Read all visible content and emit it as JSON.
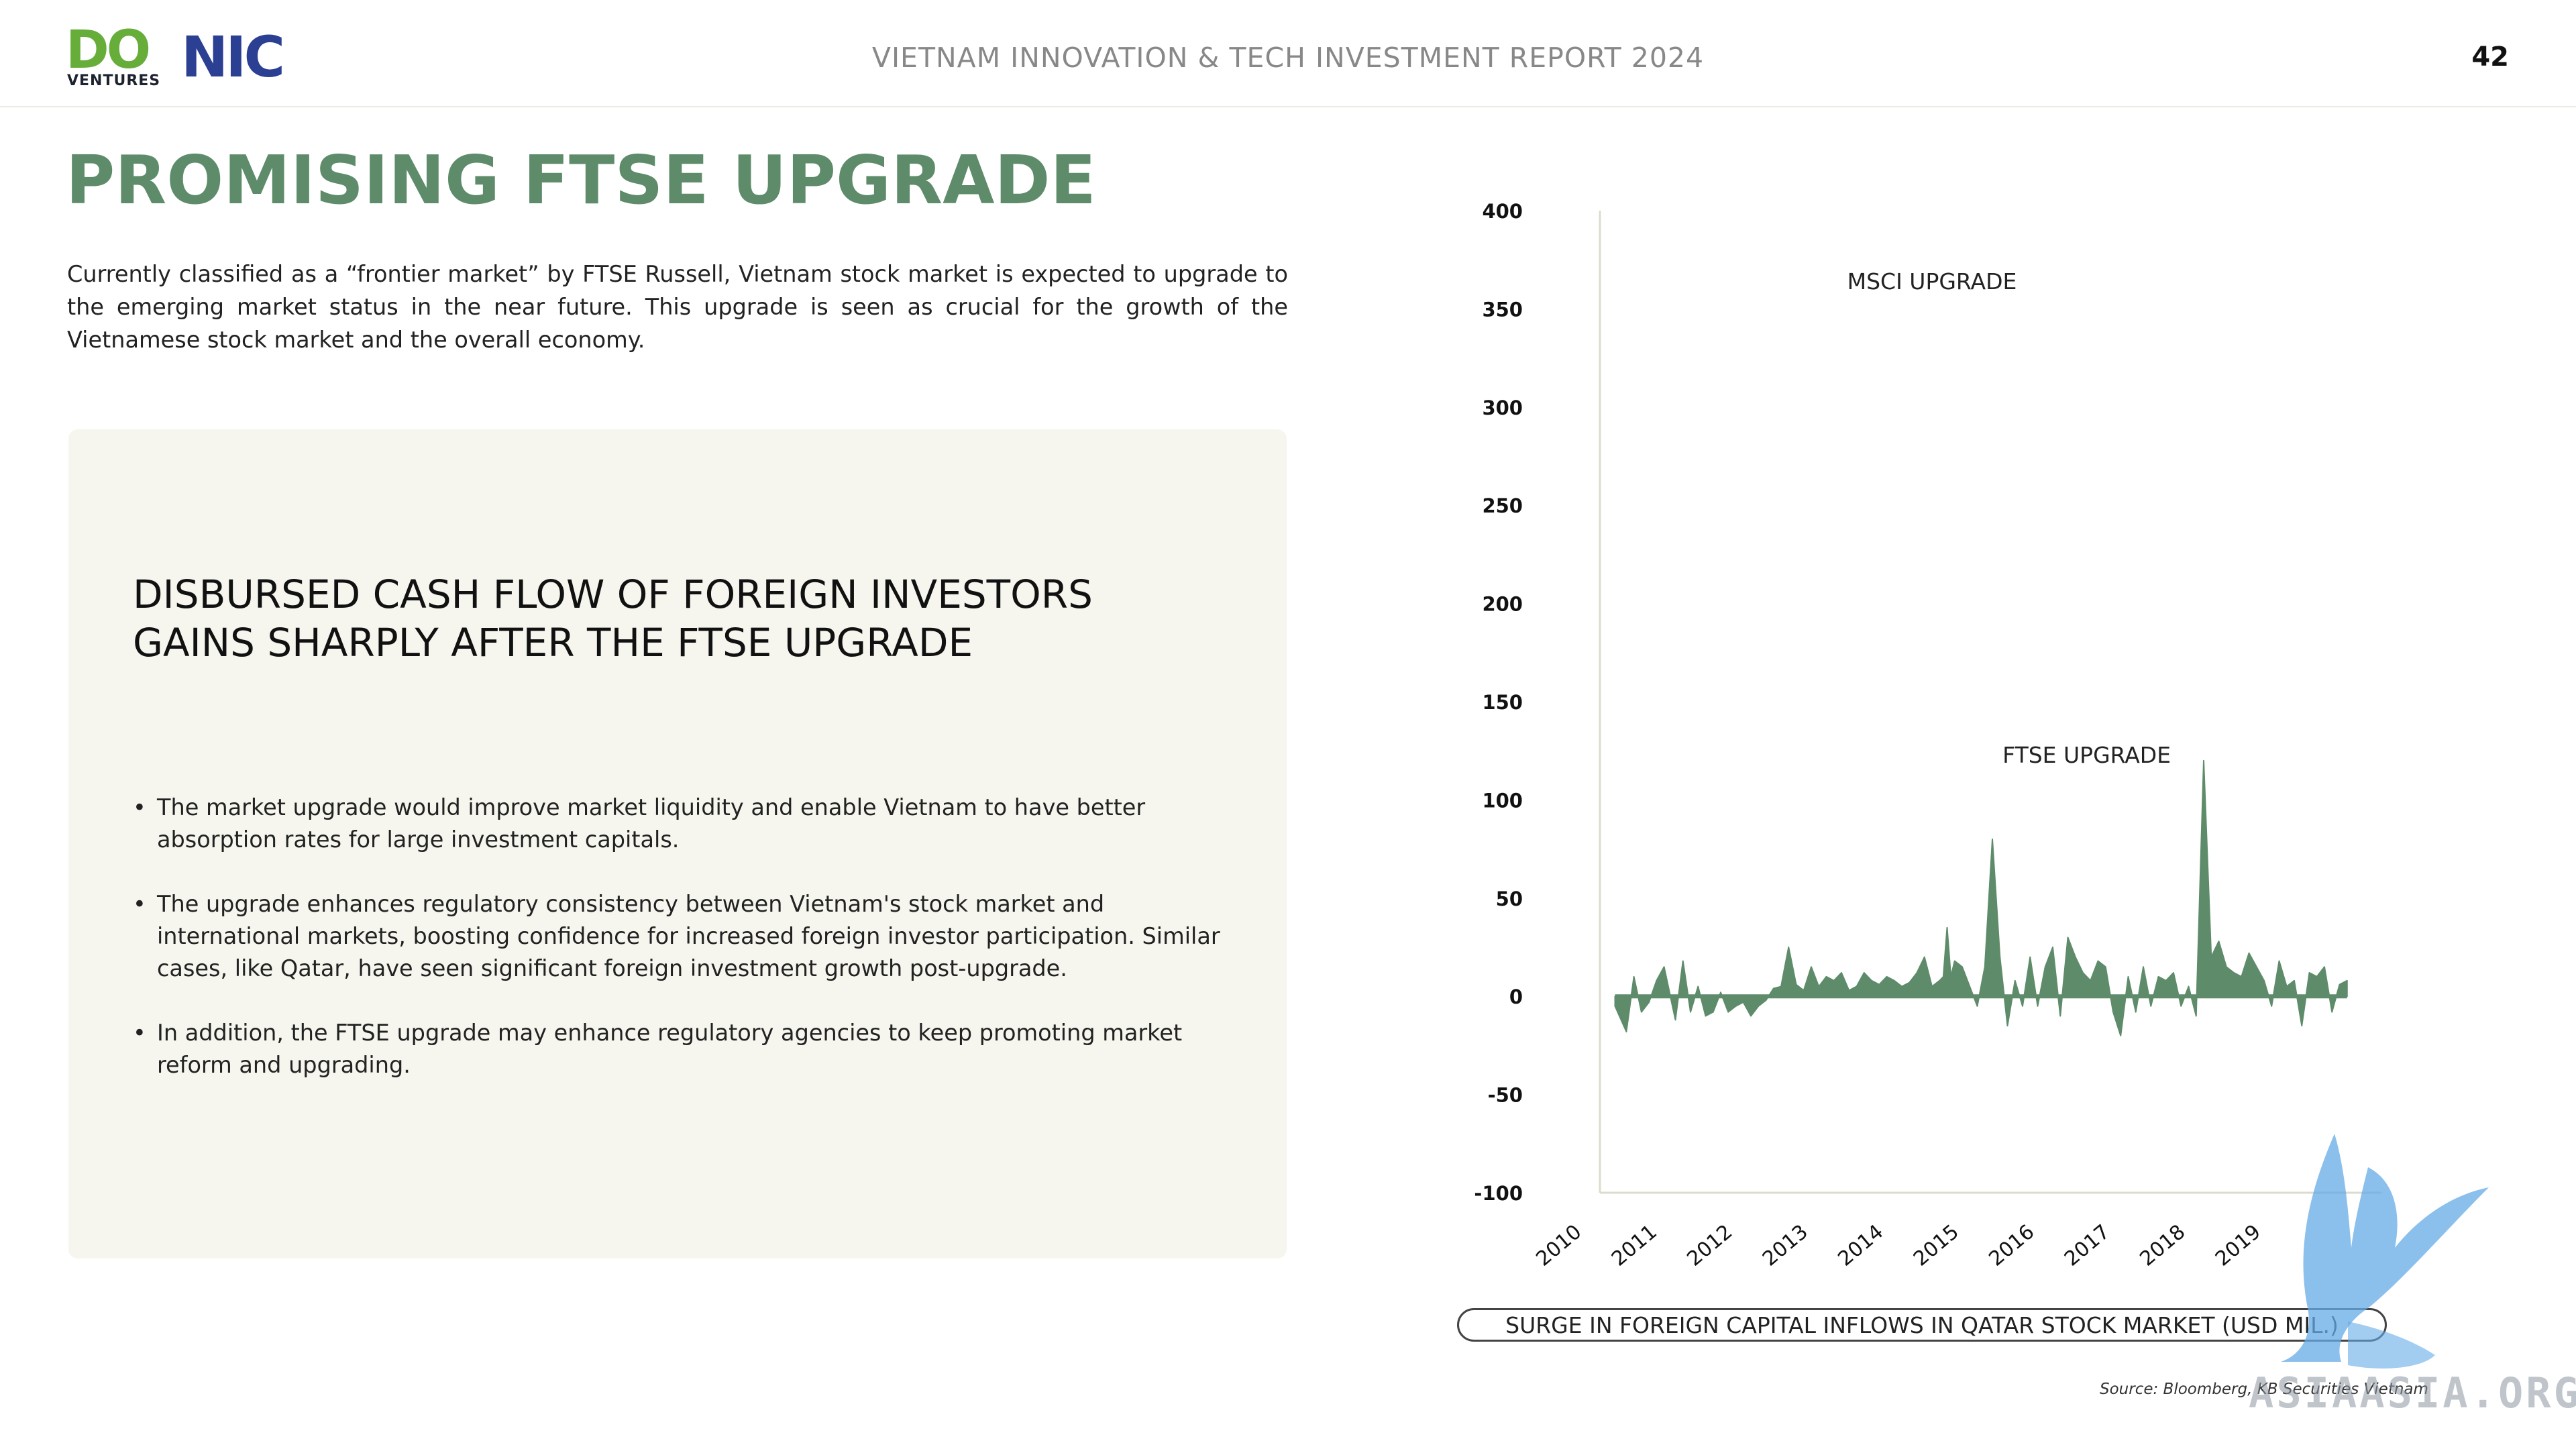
{
  "header": {
    "logo_do": "DO",
    "logo_ventures": "VENTURES",
    "logo_nic": "NIC",
    "title": "VIETNAM INNOVATION & TECH INVESTMENT REPORT 2024",
    "page_number": "42"
  },
  "page_title": "PROMISING FTSE UPGRADE",
  "intro": "Currently classified as a “frontier market” by FTSE Russell, Vietnam stock market is expected to upgrade to the emerging market status in the near future. This upgrade is seen as crucial for the growth of the Vietnamese stock market and the overall economy.",
  "card": {
    "heading_line1": "DISBURSED CASH FLOW OF FOREIGN INVESTORS",
    "heading_line2": "GAINS SHARPLY AFTER THE FTSE UPGRADE",
    "bullet_symbol": "•",
    "bullets": [
      "The market upgrade would improve market liquidity and enable Vietnam to have better absorption rates for large investment capitals.",
      "The upgrade enhances regulatory consistency between Vietnam's stock market and international markets, boosting confidence for increased foreign investor participation. Similar cases, like Qatar, have seen significant foreign investment growth post-upgrade.",
      " In addition, the FTSE upgrade may enhance regulatory agencies to keep promoting market reform and upgrading."
    ]
  },
  "chart_data": {
    "type": "area",
    "title": "SURGE IN FOREIGN CAPITAL INFLOWS IN QATAR STOCK MARKET (USD MIL.)",
    "ylim": [
      -100,
      400
    ],
    "yticks": [
      "400",
      "350",
      "300",
      "250",
      "200",
      "150",
      "100",
      "50",
      "0",
      "-50",
      "-100"
    ],
    "xlim": [
      2010,
      2020
    ],
    "xticks": [
      "2010",
      "2011",
      "2012",
      "2013",
      "2014",
      "2015",
      "2016",
      "2017",
      "2018",
      "2019"
    ],
    "series": [
      {
        "color": "#5e8c6a",
        "x": [
          2010.2,
          2010.35,
          2010.45,
          2010.55,
          2010.65,
          2010.75,
          2010.85,
          2011.0,
          2011.1,
          2011.2,
          2011.3,
          2011.4,
          2011.5,
          2011.6,
          2011.7,
          2011.8,
          2011.9,
          2012.0,
          2012.1,
          2012.2,
          2012.3,
          2012.4,
          2012.5,
          2012.6,
          2012.7,
          2012.8,
          2012.9,
          2013.0,
          2013.1,
          2013.2,
          2013.3,
          2013.4,
          2013.5,
          2013.6,
          2013.7,
          2013.8,
          2013.9,
          2014.0,
          2014.1,
          2014.2,
          2014.3,
          2014.4,
          2014.5,
          2014.55,
          2014.6,
          2014.65,
          2014.7,
          2014.8,
          2014.9,
          2015.0,
          2015.1,
          2015.2,
          2015.3,
          2015.4,
          2015.5,
          2015.6,
          2015.7,
          2015.8,
          2015.9,
          2016.0,
          2016.1,
          2016.2,
          2016.3,
          2016.4,
          2016.5,
          2016.6,
          2016.7,
          2016.8,
          2016.9,
          2017.0,
          2017.1,
          2017.2,
          2017.3,
          2017.4,
          2017.5,
          2017.6,
          2017.7,
          2017.8,
          2017.9,
          2018.0,
          2018.1,
          2018.2,
          2018.3,
          2018.4,
          2018.5,
          2018.6,
          2018.7,
          2018.8,
          2018.9,
          2019.0,
          2019.1,
          2019.2,
          2019.3,
          2019.4,
          2019.5,
          2019.6,
          2019.7,
          2019.8,
          2019.9
        ],
        "values": [
          -5,
          -18,
          10,
          -8,
          -3,
          8,
          15,
          -12,
          18,
          -8,
          5,
          -10,
          -8,
          2,
          -8,
          -5,
          -3,
          -10,
          -5,
          -2,
          4,
          5,
          25,
          6,
          3,
          15,
          5,
          10,
          8,
          12,
          3,
          5,
          12,
          8,
          6,
          10,
          8,
          5,
          7,
          12,
          20,
          5,
          8,
          10,
          35,
          10,
          18,
          15,
          5,
          -5,
          15,
          80,
          20,
          -15,
          8,
          -5,
          20,
          -5,
          15,
          25,
          -10,
          30,
          20,
          12,
          8,
          18,
          15,
          -8,
          -20,
          10,
          -8,
          15,
          -5,
          10,
          8,
          12,
          -5,
          5,
          -10,
          120,
          20,
          28,
          15,
          12,
          10,
          22,
          15,
          8,
          -5,
          18,
          5,
          8,
          -15,
          12,
          10,
          15,
          -8,
          6,
          8
        ]
      }
    ],
    "annotations": [
      {
        "text": "MSCI UPGRADE",
        "x": 2014.4,
        "y": 360
      },
      {
        "text": "FTSE UPGRADE",
        "x": 2016.45,
        "y": 119
      }
    ],
    "grid": false,
    "source": "Source: Bloomberg, KB Securities Vietnam"
  },
  "watermark": "ASIAASIA.ORG"
}
